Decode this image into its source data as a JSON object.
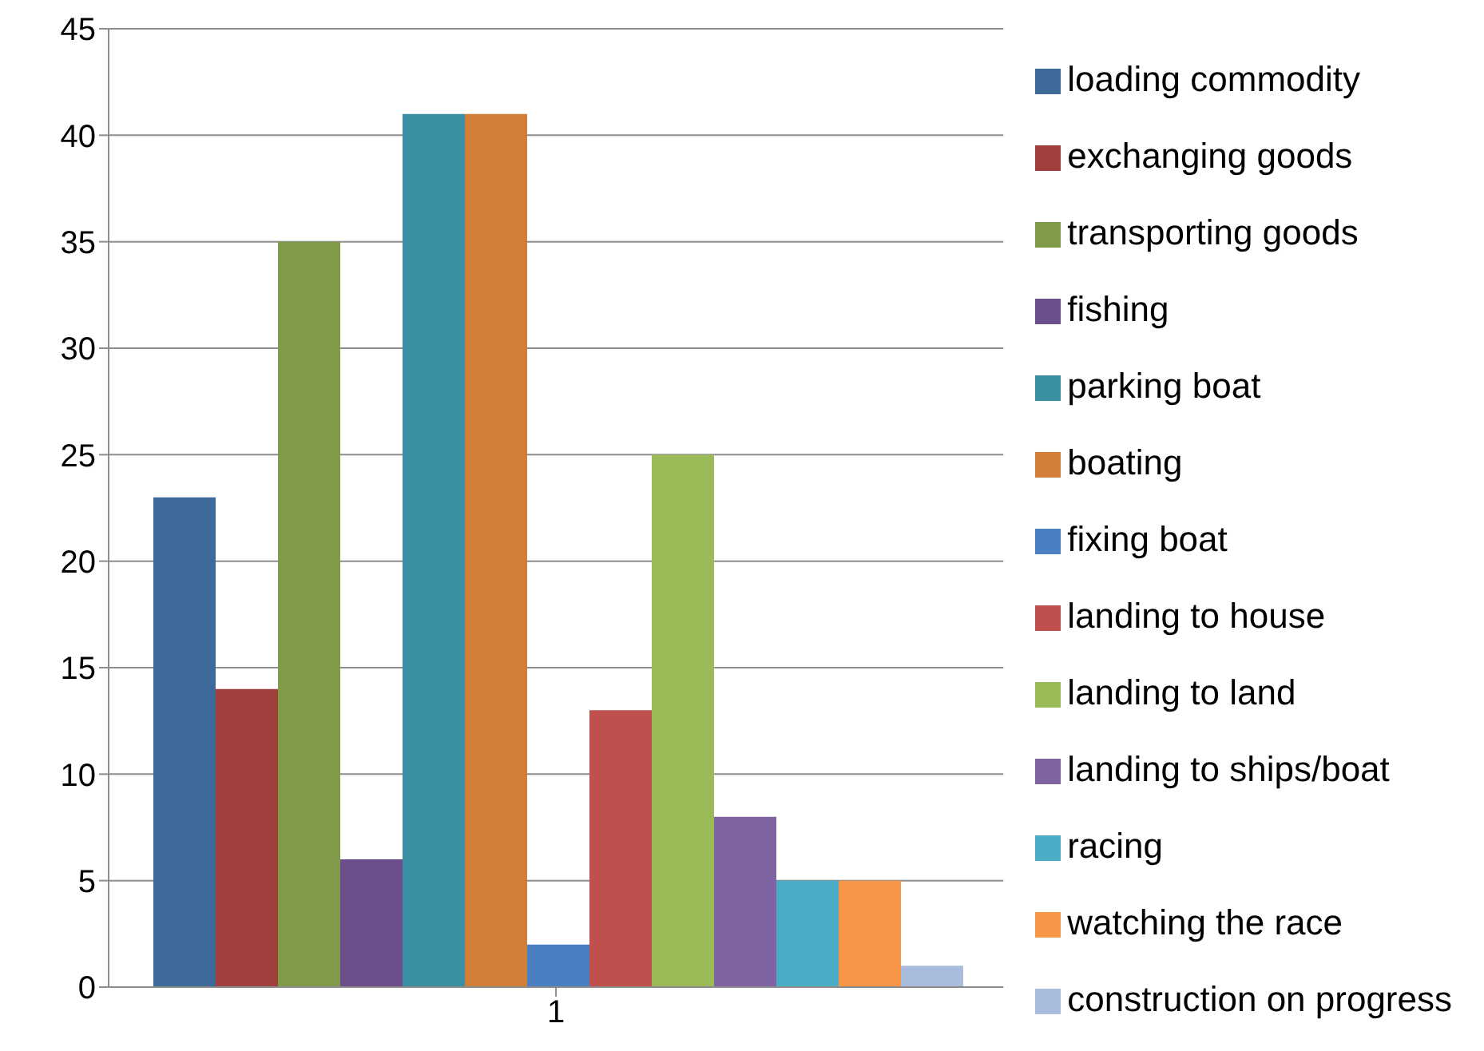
{
  "chart_data": {
    "type": "bar",
    "categories": [
      "1"
    ],
    "series": [
      {
        "name": "loading commodity",
        "color": "#3e6a9a",
        "values": [
          23
        ]
      },
      {
        "name": "exchanging goods",
        "color": "#a0403c",
        "values": [
          14
        ]
      },
      {
        "name": "transporting goods",
        "color": "#7f9a48",
        "values": [
          35
        ]
      },
      {
        "name": "fishing",
        "color": "#6a4f8a",
        "values": [
          6
        ]
      },
      {
        "name": "parking boat",
        "color": "#3a8fa3",
        "values": [
          41
        ]
      },
      {
        "name": "boating",
        "color": "#d07e38",
        "values": [
          41
        ]
      },
      {
        "name": "fixing boat",
        "color": "#4a7fc1",
        "values": [
          2
        ]
      },
      {
        "name": "landing to house",
        "color": "#c0504d",
        "values": [
          13
        ]
      },
      {
        "name": "landing to land",
        "color": "#9bbb59",
        "values": [
          25
        ]
      },
      {
        "name": "landing to ships/boat",
        "color": "#8064a2",
        "values": [
          8
        ]
      },
      {
        "name": "racing",
        "color": "#4bacc6",
        "values": [
          5
        ]
      },
      {
        "name": "watching the race",
        "color": "#f79646",
        "values": [
          5
        ]
      },
      {
        "name": "construction on progress",
        "color": "#a9bcdc",
        "values": [
          1
        ]
      }
    ],
    "ylim": [
      0,
      45
    ],
    "yticks": [
      0,
      5,
      10,
      15,
      20,
      25,
      30,
      35,
      40,
      45
    ],
    "grid": "y",
    "legend": "right"
  }
}
